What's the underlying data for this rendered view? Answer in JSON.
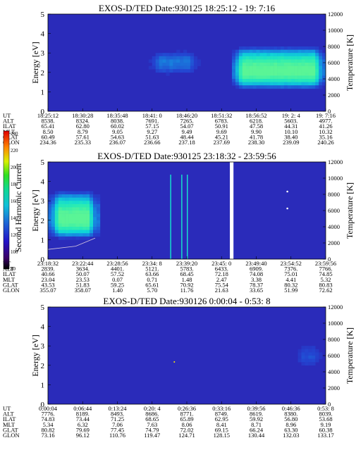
{
  "chart_data": [
    {
      "type": "heatmap",
      "title": "EXOS-D/TED",
      "date_label": "Date:930125",
      "time_range": "18:25:12 - 19: 7:16",
      "ylabel": "Energy [eV]",
      "ylabel_right": "Temperature [K]",
      "ylim": [
        0,
        5
      ],
      "yticks": [
        "0",
        "1",
        "2",
        "3",
        "4",
        "5"
      ],
      "ylim_right": [
        0,
        12000
      ],
      "yticks_right": [
        "0",
        "2000",
        "4000",
        "6000",
        "8000",
        "10000",
        "12000"
      ],
      "ephemeris_labels": [
        "UT",
        "ALT",
        "ILAT",
        "MLT",
        "GLAT",
        "GLON"
      ],
      "ephemeris": [
        [
          "18:25:12",
          "8538.",
          "65.41",
          "8.50",
          "60.49",
          "234.36"
        ],
        [
          "18:30:28",
          "8324.",
          "62.80",
          "8.79",
          "57.61",
          "235.33"
        ],
        [
          "18:35:48",
          "8038.",
          "60.02",
          "9.05",
          "54.63",
          "236.07"
        ],
        [
          "18:41: 0",
          "7691.",
          "57.15",
          "9.27",
          "51.63",
          "236.66"
        ],
        [
          "18:46:20",
          "7265.",
          "54.07",
          "9.49",
          "48.44",
          "237.18"
        ],
        [
          "18:51:32",
          "6783.",
          "50.91",
          "9.69",
          "45.21",
          "237.69"
        ],
        [
          "18:56:52",
          "6218.",
          "47.58",
          "9.90",
          "41.78",
          "238.30"
        ],
        [
          "19: 2: 4",
          "5603.",
          "44.31",
          "10.10",
          "38.40",
          "239.09"
        ],
        [
          "19: 7:16",
          "4977.",
          "41.26",
          "10.32",
          "35.16",
          "240.26"
        ]
      ],
      "features": [
        {
          "t0": 0.66,
          "t1": 1.0,
          "e0": 1.1,
          "e1": 3.4,
          "peak": 2.05,
          "level": 1.0
        },
        {
          "t0": 0.36,
          "t1": 0.55,
          "e0": 1.8,
          "e1": 3.2,
          "peak": 2.5,
          "level": 0.35
        }
      ]
    },
    {
      "type": "heatmap",
      "title": "EXOS-D/TED",
      "date_label": "Date:930125",
      "time_range": "23:18:32 - 23:59:56",
      "ylabel": "Energy [eV]",
      "ylabel_right": "Temperature [K]",
      "ylim": [
        0,
        5
      ],
      "yticks": [
        "0",
        "1",
        "2",
        "3",
        "4",
        "5"
      ],
      "ylim_right": [
        0,
        12000
      ],
      "yticks_right": [
        "0",
        "2000",
        "4000",
        "6000",
        "8000",
        "10000",
        "12000"
      ],
      "ephemeris_labels": [
        "UT",
        "ALT",
        "ILAT",
        "MLT",
        "GLAT",
        "GLON"
      ],
      "ephemeris": [
        [
          "23:18:32",
          "2839.",
          "40.66",
          "23.04",
          "43.53",
          "355.07"
        ],
        [
          "23:22:44",
          "3634.",
          "50.07",
          "23.53",
          "51.83",
          "358.07"
        ],
        [
          "23:28:56",
          "4401.",
          "57.52",
          "0.07",
          "59.25",
          "1.40"
        ],
        [
          "23:34: 8",
          "5121.",
          "63.66",
          "0.71",
          "65.61",
          "5.70"
        ],
        [
          "23:39:20",
          "5783.",
          "68.45",
          "1.48",
          "70.92",
          "11.76"
        ],
        [
          "23:45: 0",
          "6433.",
          "72.18",
          "2.47",
          "75.54",
          "21.63"
        ],
        [
          "23:49:40",
          "6909.",
          "74.08",
          "3.38",
          "78.37",
          "33.65"
        ],
        [
          "23:54:52",
          "7376.",
          "75.01",
          "4.41",
          "80.32",
          "51.99"
        ],
        [
          "23:59:56",
          "7766.",
          "74.85",
          "5.32",
          "80.83",
          "72.62"
        ]
      ],
      "features": [
        {
          "t0": 0.0,
          "t1": 0.185,
          "e0": 1.0,
          "e1": 3.6,
          "peak": 2.05,
          "level": 1.0
        }
      ],
      "white_band_fraction": [
        0.655,
        0.668
      ],
      "spike_fractions": [
        0.44,
        0.48,
        0.5
      ],
      "temperature_trace_k": [
        {
          "t": 0.0,
          "k": 1200
        },
        {
          "t": 0.1,
          "k": 1600
        },
        {
          "t": 0.17,
          "k": 2600
        }
      ]
    },
    {
      "type": "heatmap",
      "title": "EXOS-D/TED",
      "date_label": "Date:930126",
      "time_range": "0:00:04 - 0:53: 8",
      "ylabel": "Energy [eV]",
      "ylabel_right": "Temperature [K]",
      "ylim": [
        0,
        5
      ],
      "yticks": [
        "0",
        "1",
        "2",
        "3",
        "4",
        "5"
      ],
      "ylim_right": [
        0,
        12000
      ],
      "yticks_right": [
        "0",
        "2000",
        "4000",
        "6000",
        "8000",
        "10000",
        "12000"
      ],
      "ephemeris_labels": [
        "UT",
        "ALT",
        "ILAT",
        "MLT",
        "GLAT",
        "GLON"
      ],
      "ephemeris": [
        [
          "0:00:04",
          "7776.",
          "74.83",
          "5.34",
          "80.82",
          "73.16"
        ],
        [
          "0:06:44",
          "8189.",
          "73.44",
          "6.32",
          "79.69",
          "96.12"
        ],
        [
          "0:13:24",
          "8493.",
          "71.25",
          "7.06",
          "77.45",
          "110.76"
        ],
        [
          "0:20: 4",
          "8686.",
          "68.65",
          "7.63",
          "74.79",
          "119.47"
        ],
        [
          "0:26:36",
          "8771.",
          "65.89",
          "8.06",
          "72.02",
          "124.71"
        ],
        [
          "0:33:16",
          "8749.",
          "62.95",
          "8.41",
          "69.15",
          "128.15"
        ],
        [
          "0:39:56",
          "8619.",
          "59.92",
          "8.71",
          "66.24",
          "130.44"
        ],
        [
          "0:46:36",
          "8380.",
          "56.80",
          "8.96",
          "63.30",
          "132.03"
        ],
        [
          "0:53: 8",
          "8039.",
          "53.68",
          "9.19",
          "60.38",
          "133.17"
        ]
      ],
      "features": [
        {
          "t0": 0.88,
          "t1": 1.0,
          "e0": 1.8,
          "e1": 3.2,
          "peak": 2.4,
          "level": 0.25
        }
      ]
    }
  ],
  "colorbar": {
    "label": "Second Harmonic Current",
    "ticks": [
      "240",
      "220",
      "200",
      "180",
      "160",
      "140",
      "120",
      "100",
      "80"
    ],
    "range": [
      80,
      240
    ]
  }
}
